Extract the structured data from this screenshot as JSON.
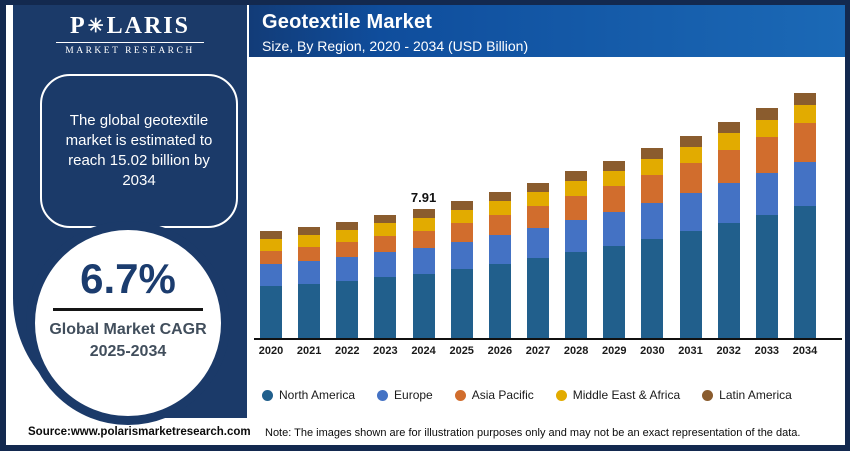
{
  "brand": {
    "name_prefix": "P",
    "name_suffix": "LARIS",
    "star_icon": "✳",
    "tagline": "MARKET RESEARCH"
  },
  "header": {
    "title": "Geotextile Market",
    "subtitle": "Size, By Region, 2020 - 2034 (USD Billion)"
  },
  "sidebar": {
    "estimate_text": "The global geotextile market is estimated to reach 15.02 billion by 2034",
    "cagr_value": "6.7%",
    "cagr_label_line1": "Global Market CAGR",
    "cagr_label_line2": "2025-2034"
  },
  "footer": {
    "source": "Source:www.polarismarketresearch.com",
    "note": "Note: The images shown are for illustration purposes only and may not be an exact representation of the data."
  },
  "colors": {
    "frame_border": "#13294f",
    "sidebar_navy": "#1b3a69",
    "header_gradient_start": "#123c78",
    "header_gradient_end": "#1b69b6",
    "axis": "#111111"
  },
  "chart_data": {
    "type": "bar",
    "stacked": true,
    "title": "Geotextile Market",
    "subtitle": "Size, By Region, 2020 - 2034 (USD Billion)",
    "unit": "USD Billion",
    "legend_position": "bottom",
    "grid": false,
    "y_axis_visible": false,
    "ylim": [
      0,
      16
    ],
    "categories": [
      "2020",
      "2021",
      "2022",
      "2023",
      "2024",
      "2025",
      "2026",
      "2027",
      "2028",
      "2029",
      "2030",
      "2031",
      "2032",
      "2033",
      "2034"
    ],
    "series": [
      {
        "name": "North America",
        "color": "#215f8c",
        "values": [
          3.17,
          3.33,
          3.52,
          3.72,
          3.94,
          4.23,
          4.55,
          4.89,
          5.26,
          5.65,
          6.08,
          6.54,
          7.04,
          7.57,
          8.12
        ]
      },
      {
        "name": "Europe",
        "color": "#4472c4",
        "values": [
          1.37,
          1.41,
          1.46,
          1.52,
          1.58,
          1.67,
          1.76,
          1.86,
          1.96,
          2.07,
          2.19,
          2.31,
          2.44,
          2.57,
          2.72
        ]
      },
      {
        "name": "Asia Pacific",
        "color": "#d16d2d",
        "values": [
          0.81,
          0.87,
          0.93,
          0.99,
          1.06,
          1.14,
          1.24,
          1.35,
          1.46,
          1.59,
          1.72,
          1.87,
          2.02,
          2.19,
          2.37
        ]
      },
      {
        "name": "Middle East & Africa",
        "color": "#e2ab00",
        "values": [
          0.73,
          0.75,
          0.76,
          0.78,
          0.8,
          0.82,
          0.85,
          0.88,
          0.91,
          0.94,
          0.97,
          1.0,
          1.03,
          1.06,
          1.09
        ]
      },
      {
        "name": "Latin America",
        "color": "#8a5c2e",
        "values": [
          0.49,
          0.5,
          0.51,
          0.52,
          0.53,
          0.54,
          0.56,
          0.58,
          0.61,
          0.63,
          0.65,
          0.67,
          0.69,
          0.71,
          0.72
        ]
      }
    ],
    "totals": [
      6.57,
      6.86,
      7.18,
      7.53,
      7.91,
      8.4,
      8.96,
      9.56,
      10.2,
      10.88,
      11.61,
      12.39,
      13.22,
      14.1,
      15.02
    ],
    "labeled_points": [
      {
        "category": "2024",
        "label": "7.91"
      }
    ]
  }
}
